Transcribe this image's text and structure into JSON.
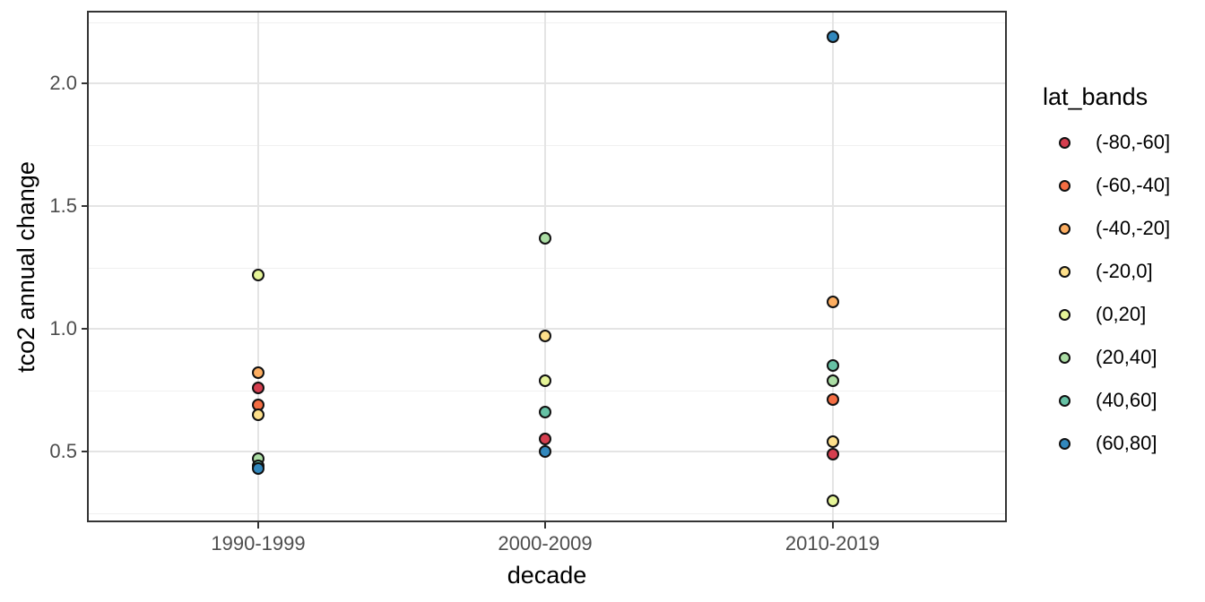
{
  "figure": {
    "background": "#ffffff",
    "panel_border_color": "#343434",
    "grid_major_color": "#e4e4e4",
    "grid_minor_color": "#f0f0f0",
    "tick_label_color": "#4d4d4d",
    "point_outline_color": "#111111"
  },
  "chart_data": {
    "type": "scatter",
    "title": "",
    "xlabel": "decade",
    "ylabel": "tco2 annual change",
    "legend_title": "lat_bands",
    "legend_position": "right",
    "grid": true,
    "categories": [
      "1990-1999",
      "2000-2009",
      "2010-2019"
    ],
    "y_ticks": [
      {
        "value": 0.5,
        "label": "0.5"
      },
      {
        "value": 1.0,
        "label": "1.0"
      },
      {
        "value": 1.5,
        "label": "1.5"
      },
      {
        "value": 2.0,
        "label": "2.0"
      }
    ],
    "y_minor_gridlines": [
      0.25,
      0.75,
      1.25,
      1.75,
      2.25
    ],
    "y_major_gridlines": [
      0.5,
      1.0,
      1.5,
      2.0
    ],
    "ylim": [
      0.215,
      2.292
    ],
    "series": [
      {
        "name": "(-80,-60]",
        "color": "#d53e4f",
        "values": [
          0.76,
          0.55,
          0.49
        ]
      },
      {
        "name": "(-60,-40]",
        "color": "#f46d43",
        "values": [
          0.69,
          null,
          0.71
        ]
      },
      {
        "name": "(-40,-20]",
        "color": "#fdae61",
        "values": [
          0.82,
          null,
          1.11
        ]
      },
      {
        "name": "(-20,0]",
        "color": "#fee08b",
        "values": [
          0.65,
          0.97,
          0.54
        ]
      },
      {
        "name": "(0,20]",
        "color": "#e6f598",
        "values": [
          1.22,
          0.79,
          0.3
        ]
      },
      {
        "name": "(20,40]",
        "color": "#abdda4",
        "values": [
          0.47,
          1.37,
          0.79
        ]
      },
      {
        "name": "(40,60]",
        "color": "#66c2a5",
        "values": [
          0.44,
          0.66,
          0.85
        ]
      },
      {
        "name": "(60,80]",
        "color": "#3288bd",
        "values": [
          0.43,
          0.5,
          2.19
        ]
      }
    ]
  }
}
